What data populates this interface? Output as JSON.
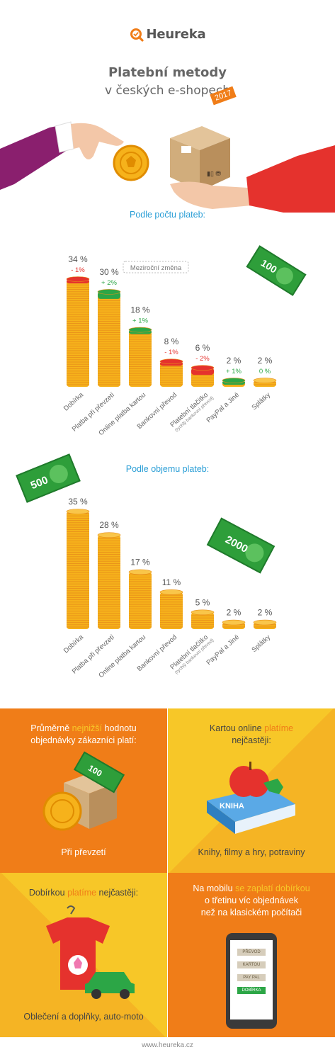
{
  "header": {
    "logo_text": "Heureka",
    "title_line1": "Platební metody",
    "title_line2": "v českých e-shopech",
    "year": "2017"
  },
  "section1_title": "Podle počtu plateb:",
  "section2_title": "Podle objemu plateb:",
  "legend_note": "Meziroční změna",
  "banknotes": [
    "100",
    "500",
    "2000",
    "100"
  ],
  "colors": {
    "accent_orange": "#f07d18",
    "blue": "#2a9ed6",
    "green": "#2ca646",
    "red": "#e5322d",
    "coin": "#f6b21b"
  },
  "chart_data": [
    {
      "type": "bar",
      "title": "Podle počtu plateb:",
      "categories": [
        "Dobírka",
        "Platba při převzetí",
        "Online platba kartou",
        "Bankovní převod",
        "Platební tlačítko",
        "PayPal a Jiné",
        "Splátky"
      ],
      "category_sublabels": [
        "",
        "",
        "",
        "",
        "(rychlý bankovní převod)",
        "",
        ""
      ],
      "value_labels": [
        "34 %",
        "30 %",
        "18 %",
        "8 %",
        "6 %",
        "2 %",
        "2 %"
      ],
      "values": [
        34,
        30,
        18,
        8,
        6,
        2,
        2
      ],
      "change_labels": [
        "- 1%",
        "+ 2%",
        "+ 1%",
        "- 1%",
        "- 2%",
        "+ 1%",
        "0 %"
      ],
      "changes": [
        -1,
        2,
        1,
        -1,
        -2,
        1,
        0
      ],
      "ylim": [
        0,
        34
      ]
    },
    {
      "type": "bar",
      "title": "Podle objemu plateb:",
      "categories": [
        "Dobírka",
        "Platba při převzetí",
        "Online platba kartou",
        "Bankovní převod",
        "Platební tlačítko",
        "PayPal a Jiné",
        "Splátky"
      ],
      "category_sublabels": [
        "",
        "",
        "",
        "",
        "(rychlý bankovní převod)",
        "",
        ""
      ],
      "value_labels": [
        "35 %",
        "28 %",
        "17 %",
        "11 %",
        "5 %",
        "2 %",
        "2 %"
      ],
      "values": [
        35,
        28,
        17,
        11,
        5,
        2,
        2
      ],
      "ylim": [
        0,
        35
      ]
    }
  ],
  "panels": {
    "p1": {
      "line1_a": "Průměrně ",
      "line1_b": "nejnižší",
      "line1_c": " hodnotu",
      "line2": "objednávky zákazníci platí:",
      "caption": "Při převzetí"
    },
    "p2": {
      "line1_a": "Kartou online ",
      "line1_b": "platíme",
      "line2": "nejčastěji:",
      "caption": "Knihy, filmy a hry, potraviny",
      "book_label": "KNIHA"
    },
    "p3": {
      "line1_a": "Dobírkou ",
      "line1_b": "platíme",
      "line1_c": " nejčastěji:",
      "caption": "Oblečení a doplňky, auto-moto"
    },
    "p4": {
      "line1_a": "Na mobilu ",
      "line1_b": "se zaplatí dobírkou",
      "line2": "o třetinu víc objednávek",
      "line3": "než na klasickém počítači",
      "phone_buttons": [
        "PŘEVOD",
        "KARTOU",
        "PAY PAL",
        "DOBÍRKA"
      ]
    }
  },
  "footer": "www.heureka.cz"
}
